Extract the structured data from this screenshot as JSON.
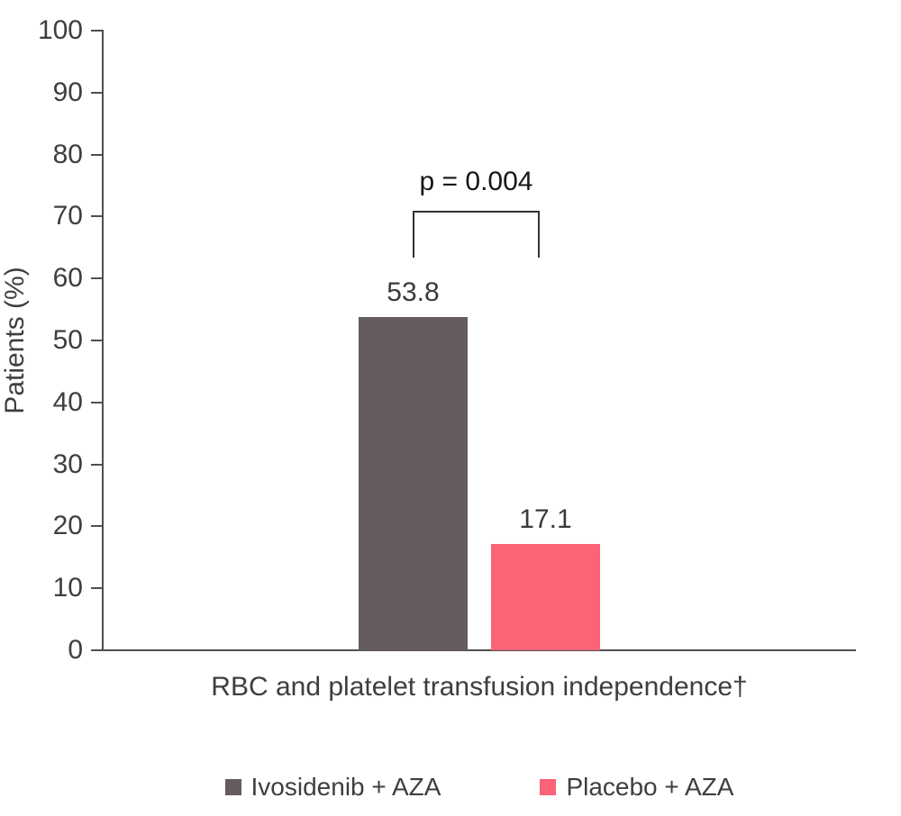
{
  "chart_data": {
    "type": "bar",
    "title": "",
    "ylabel": "Patients (%)",
    "xlabel": "",
    "ylim": [
      0,
      100
    ],
    "yticks": [
      0,
      10,
      20,
      30,
      40,
      50,
      60,
      70,
      80,
      90,
      100
    ],
    "grid": false,
    "legend_position": "bottom",
    "categories": [
      "RBC and platelet transfusion independence†"
    ],
    "series": [
      {
        "name": "Ivosidenib + AZA",
        "values": [
          53.8
        ],
        "color": "#645C60"
      },
      {
        "name": "Placebo + AZA",
        "values": [
          17.1
        ],
        "color": "#FB6377"
      }
    ],
    "annotation": {
      "text": "p = 0.004"
    }
  },
  "colors": {
    "axis": "#4F4F4F",
    "tick_text": "#3E3E3E",
    "p_text": "#161616",
    "bar_gray": "#645C60",
    "bar_pink": "#FB6377"
  }
}
